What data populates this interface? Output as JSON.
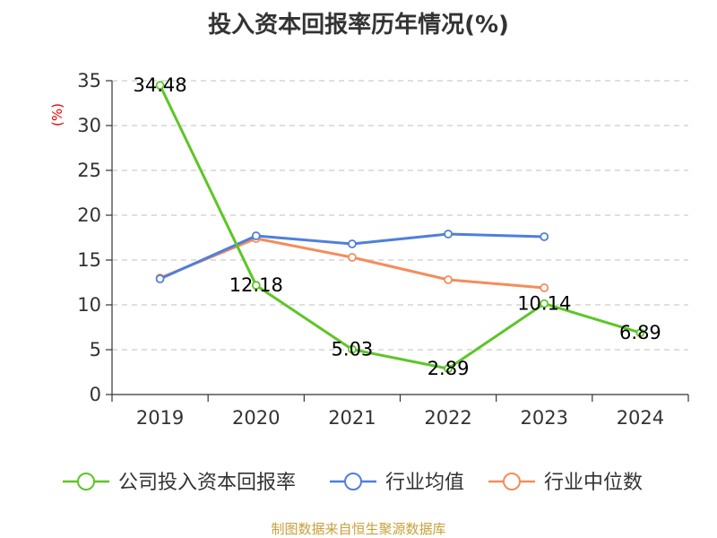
{
  "chart_data": {
    "type": "line",
    "title": "投入资本回报率历年情况(%)",
    "ylabel": "(%)",
    "xlabel": "",
    "categories": [
      "2019",
      "2020",
      "2021",
      "2022",
      "2023",
      "2024"
    ],
    "ylim": [
      0,
      35
    ],
    "yticks": [
      0,
      5,
      10,
      15,
      20,
      25,
      30,
      35
    ],
    "grid": true,
    "legend_position": "bottom",
    "series": [
      {
        "name": "公司投入资本回报率",
        "color": "#5cc625",
        "values": [
          34.48,
          12.18,
          5.03,
          2.89,
          10.14,
          6.89
        ],
        "labels": [
          "34.48",
          "12.18",
          "5.03",
          "2.89",
          "10.14",
          "6.89"
        ]
      },
      {
        "name": "行业均值",
        "color": "#4e7fde",
        "values": [
          12.9,
          17.7,
          16.8,
          17.9,
          17.6,
          null
        ]
      },
      {
        "name": "行业中位数",
        "color": "#f58c5a",
        "values": [
          13.0,
          17.4,
          15.3,
          12.8,
          11.9,
          null
        ]
      }
    ],
    "source": "制图数据来自恒生聚源数据库"
  }
}
